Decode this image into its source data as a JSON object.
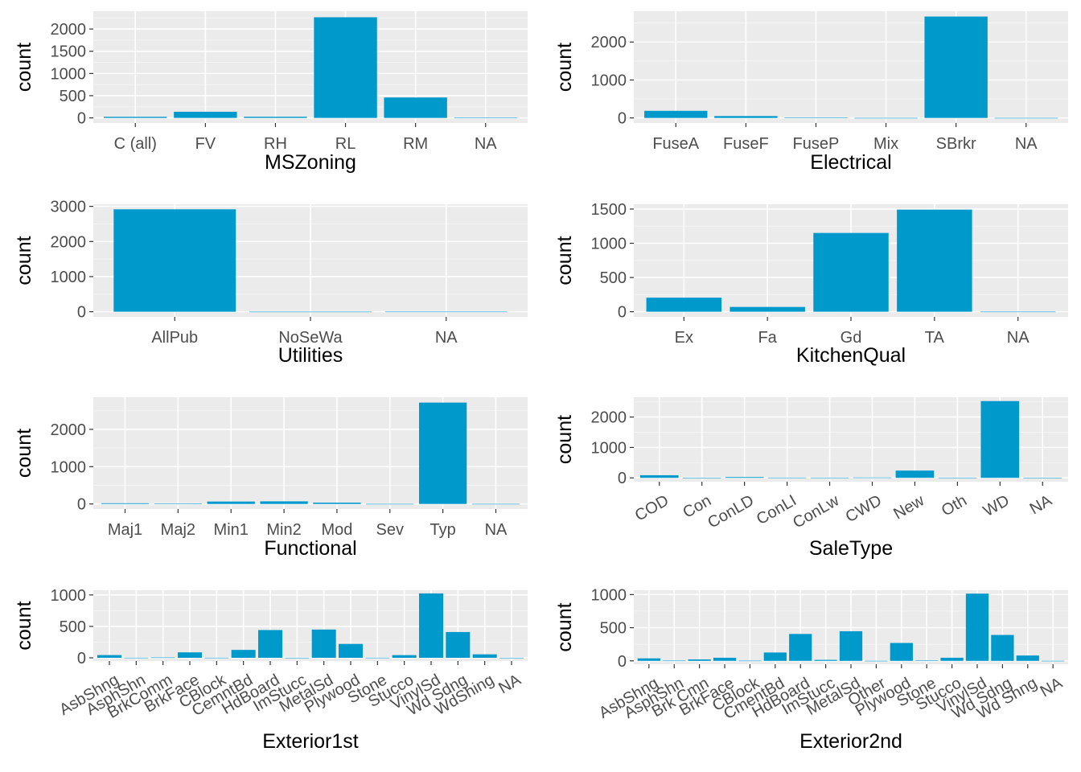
{
  "colors": {
    "bar": "#0099cc",
    "panel": "#ebebeb",
    "grid": "#ffffff"
  },
  "chart_data": [
    {
      "type": "bar",
      "xlabel": "MSZoning",
      "ylabel": "count",
      "categories": [
        "C (all)",
        "FV",
        "RH",
        "RL",
        "RM",
        "NA"
      ],
      "values": [
        25,
        139,
        26,
        2265,
        460,
        4
      ],
      "ylim": [
        -115,
        2400
      ],
      "yticks": [
        0,
        500,
        1000,
        1500,
        2000
      ],
      "grid": true,
      "label_rotate": false
    },
    {
      "type": "bar",
      "xlabel": "Electrical",
      "ylabel": "count",
      "categories": [
        "FuseA",
        "FuseF",
        "FuseP",
        "Mix",
        "SBrkr",
        "NA"
      ],
      "values": [
        188,
        50,
        8,
        1,
        2671,
        1
      ],
      "ylim": [
        -134,
        2810
      ],
      "yticks": [
        0,
        1000,
        2000
      ],
      "grid": true,
      "label_rotate": false
    },
    {
      "type": "bar",
      "xlabel": "Utilities",
      "ylabel": "count",
      "categories": [
        "AllPub",
        "NoSeWa",
        "NA"
      ],
      "values": [
        2916,
        1,
        2
      ],
      "ylim": [
        -146,
        3060
      ],
      "yticks": [
        0,
        1000,
        2000,
        3000
      ],
      "grid": true,
      "label_rotate": false
    },
    {
      "type": "bar",
      "xlabel": "KitchenQual",
      "ylabel": "count",
      "categories": [
        "Ex",
        "Fa",
        "Gd",
        "TA",
        "NA"
      ],
      "values": [
        205,
        70,
        1151,
        1492,
        1
      ],
      "ylim": [
        -75,
        1570
      ],
      "yticks": [
        0,
        500,
        1000,
        1500
      ],
      "grid": true,
      "label_rotate": false
    },
    {
      "type": "bar",
      "xlabel": "Functional",
      "ylabel": "count",
      "categories": [
        "Maj1",
        "Maj2",
        "Min1",
        "Min2",
        "Mod",
        "Sev",
        "Typ",
        "NA"
      ],
      "values": [
        19,
        9,
        65,
        70,
        35,
        2,
        2717,
        2
      ],
      "ylim": [
        -136,
        2860
      ],
      "yticks": [
        0,
        1000,
        2000
      ],
      "grid": true,
      "label_rotate": false
    },
    {
      "type": "bar",
      "xlabel": "SaleType",
      "ylabel": "count",
      "categories": [
        "COD",
        "Con",
        "ConLD",
        "ConLI",
        "ConLw",
        "CWD",
        "New",
        "Oth",
        "WD",
        "NA"
      ],
      "values": [
        87,
        5,
        26,
        9,
        8,
        12,
        239,
        7,
        2525,
        1
      ],
      "ylim": [
        -126,
        2650
      ],
      "yticks": [
        0,
        1000,
        2000
      ],
      "grid": true,
      "label_rotate": true
    },
    {
      "type": "bar",
      "xlabel": "Exterior1st",
      "ylabel": "count",
      "categories": [
        "AsbShng",
        "AsphShn",
        "BrkComm",
        "BrkFace",
        "CBlock",
        "CemntBd",
        "HdBoard",
        "ImStucc",
        "MetalSd",
        "Plywood",
        "Stone",
        "Stucco",
        "VinylSd",
        "Wd Sdng",
        "WdShing",
        "NA"
      ],
      "values": [
        44,
        2,
        6,
        87,
        2,
        126,
        442,
        1,
        450,
        221,
        2,
        43,
        1025,
        411,
        56,
        1
      ],
      "ylim": [
        -51,
        1075
      ],
      "yticks": [
        0,
        500,
        1000
      ],
      "grid": true,
      "label_rotate": true
    },
    {
      "type": "bar",
      "xlabel": "Exterior2nd",
      "ylabel": "count",
      "categories": [
        "AsbShng",
        "AsphShn",
        "Brk Cmn",
        "BrkFace",
        "CBlock",
        "CmentBd",
        "HdBoard",
        "ImStucc",
        "MetalSd",
        "Other",
        "Plywood",
        "Stone",
        "Stucco",
        "VinylSd",
        "Wd Sdng",
        "Wd Shng",
        "NA"
      ],
      "values": [
        38,
        4,
        22,
        47,
        3,
        126,
        406,
        15,
        447,
        1,
        270,
        6,
        47,
        1014,
        391,
        81,
        1
      ],
      "ylim": [
        -51,
        1065
      ],
      "yticks": [
        0,
        500,
        1000
      ],
      "grid": true,
      "label_rotate": true
    }
  ]
}
